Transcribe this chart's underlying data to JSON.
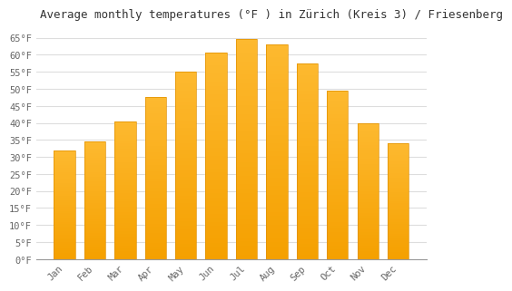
{
  "title": "Average monthly temperatures (°F ) in Zürich (Kreis 3) / Friesenberg",
  "months": [
    "Jan",
    "Feb",
    "Mar",
    "Apr",
    "May",
    "Jun",
    "Jul",
    "Aug",
    "Sep",
    "Oct",
    "Nov",
    "Dec"
  ],
  "values": [
    32.0,
    34.5,
    40.5,
    47.5,
    55.0,
    60.5,
    64.5,
    63.0,
    57.5,
    49.5,
    40.0,
    34.0
  ],
  "bar_color_top": "#FDB930",
  "bar_color_bottom": "#F5A000",
  "bar_edge_color": "#E09000",
  "background_color": "#FFFFFF",
  "grid_color": "#DDDDDD",
  "ylim": [
    0,
    68
  ],
  "yticks": [
    0,
    5,
    10,
    15,
    20,
    25,
    30,
    35,
    40,
    45,
    50,
    55,
    60,
    65
  ],
  "ylabel_suffix": "°F",
  "title_fontsize": 9,
  "tick_fontsize": 7.5,
  "font_family": "monospace"
}
